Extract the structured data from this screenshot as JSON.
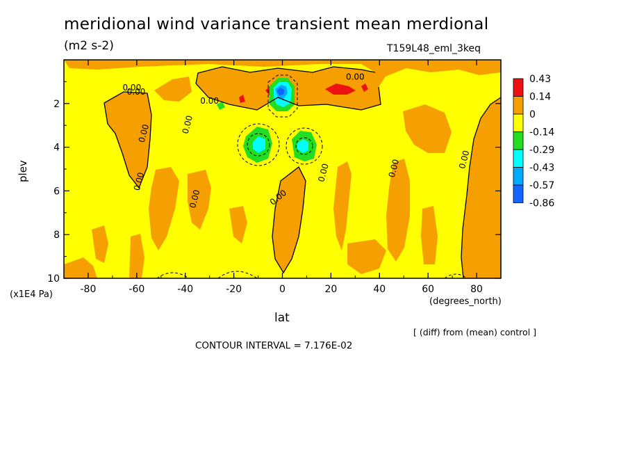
{
  "chart_data": {
    "type": "heatmap",
    "title": "meridional wind variance transient mean merdional",
    "units": "(m2 s-2)",
    "run": "T159L48_eml_3keq",
    "xlabel": "lat",
    "xunits": "(degrees_north)",
    "ylabel": "plev",
    "yunits": "(x1E4 Pa)",
    "xlim": [
      -90,
      90
    ],
    "ylim": [
      10,
      0
    ],
    "xticks": [
      "-80",
      "-60",
      "-40",
      "-20",
      "0",
      "20",
      "40",
      "60",
      "80"
    ],
    "xtick_values": [
      -80,
      -60,
      -40,
      -20,
      0,
      20,
      40,
      60,
      80
    ],
    "yticks": [
      "2",
      "4",
      "6",
      "8",
      "10"
    ],
    "ytick_values": [
      2,
      4,
      6,
      8,
      10
    ],
    "note": "[ (diff) from (mean) control ]",
    "contour_interval": "CONTOUR INTERVAL = 7.176E-02",
    "contour_label": "0.00",
    "colorbar": {
      "labels": [
        "0.43",
        "0.14",
        "0",
        "-0.14",
        "-0.29",
        "-0.43",
        "-0.57",
        "-0.86"
      ],
      "colors": [
        "#ee1111",
        "#f5a000",
        "#ffff00",
        "#22dd22",
        "#00ffff",
        "#00aaff",
        "#1166ff"
      ]
    },
    "fields": {
      "background": "#ffff00",
      "positive": "#f5a000",
      "strong_positive": "#ee1111",
      "negative": "#22dd22",
      "strong_negative": "#00ffff",
      "very_negative": "#00aaff",
      "extreme_negative": "#1166ff"
    }
  }
}
